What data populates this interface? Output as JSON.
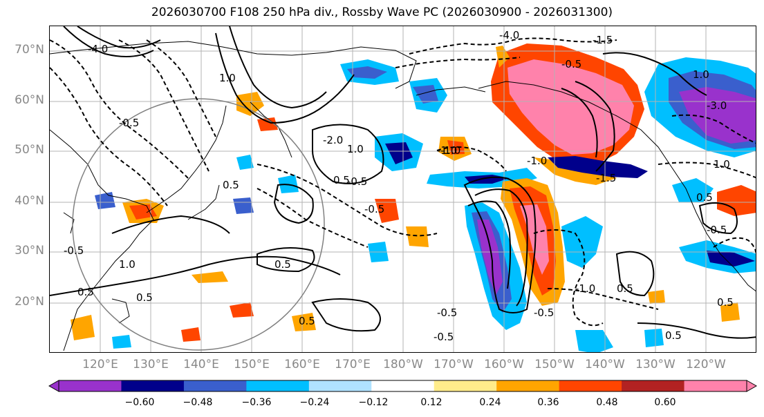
{
  "title": "2026030700 F108 250 hPa div., Rossby Wave PC (2026030900 - 2026031300)",
  "map": {
    "lat_labels": [
      "70°N",
      "60°N",
      "50°N",
      "40°N",
      "30°N",
      "20°N"
    ],
    "lon_labels": [
      "120°E",
      "130°E",
      "140°E",
      "150°E",
      "160°E",
      "170°E",
      "180°W",
      "170°W",
      "160°W",
      "150°W",
      "140°W",
      "130°W",
      "120°W"
    ],
    "contour_labels": [
      "-4.0",
      "-4.0",
      "-3.0",
      "-2.0",
      "-1.5",
      "-1.0",
      "-0.5",
      "-0.5",
      "-0.5",
      "-0.5",
      "-0.5",
      "-0.5",
      "-0.5",
      "-0.5",
      "0.5",
      "0.5",
      "0.5",
      "0.5",
      "0.5",
      "0.5",
      "0.5",
      "0.5",
      "0.5",
      "0.5",
      "1.0",
      "1.0",
      "1.0",
      "1.0",
      "1.0",
      "-1.0",
      "-1.0",
      "-1.0",
      "-1.5",
      "-0.5"
    ]
  },
  "colorbar": {
    "colors": [
      "#9932CC",
      "#00008B",
      "#3A5FCD",
      "#00BFFF",
      "#B0E2FF",
      "#FFFFFF",
      "#FFEC8B",
      "#FFA500",
      "#FF4500",
      "#B22222",
      "#FF82AB"
    ],
    "tick_labels": [
      "−0.60",
      "−0.48",
      "−0.36",
      "−0.24",
      "−0.12",
      "0.12",
      "0.24",
      "0.36",
      "0.48",
      "0.60"
    ]
  }
}
